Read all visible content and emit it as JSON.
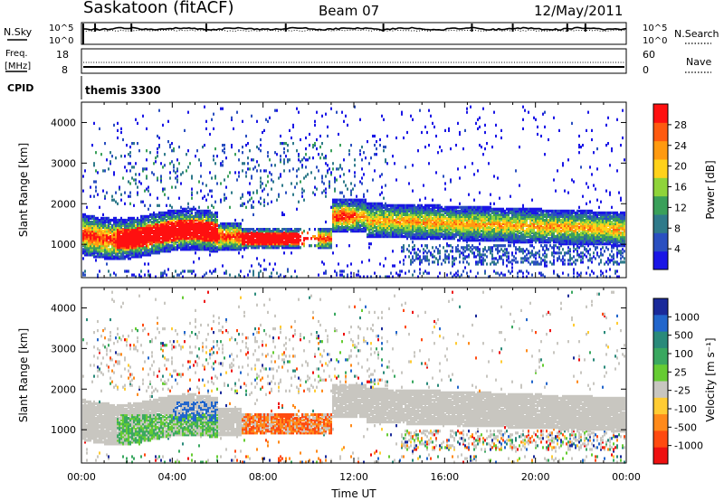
{
  "header": {
    "station": "Saskatoon (fitACF)",
    "beam": "Beam 07",
    "date": "12/May/2011"
  },
  "noise_panel": {
    "left_label": "N.Sky",
    "left_ticks": [
      "10^5",
      "10^0"
    ],
    "right_ticks": [
      "10^5",
      "10^0"
    ],
    "right_label": "N.Search"
  },
  "freq_panel": {
    "left_label_line1": "Freq.",
    "left_label_line2": "[MHz]",
    "left_ticks": [
      "18",
      "8"
    ],
    "right_ticks": [
      "60",
      "0"
    ],
    "right_label": "Nave"
  },
  "cpid": {
    "label": "CPID",
    "program": "themis 3300"
  },
  "time_axis": {
    "ticks": [
      "00:00",
      "04:00",
      "08:00",
      "12:00",
      "16:00",
      "20:00",
      "00:00"
    ],
    "label": "Time UT"
  },
  "chart_data": [
    {
      "type": "heatmap",
      "quantity": "Power",
      "ylabel": "Slant Range [km]",
      "ylim": [
        180,
        4500
      ],
      "yticks": [
        1000,
        2000,
        3000,
        4000
      ],
      "xlim_hours": [
        0,
        24
      ],
      "colorbar": {
        "label": "Power [dB]",
        "ticks": [
          "4",
          "8",
          "12",
          "16",
          "20",
          "24",
          "28"
        ],
        "colors": [
          "#1a16e6",
          "#2a4fc0",
          "#2f7a8a",
          "#3aa05a",
          "#8fd43a",
          "#ffd21a",
          "#ff9a10",
          "#ff5a10",
          "#ff1010"
        ]
      }
    },
    {
      "type": "heatmap",
      "quantity": "Velocity",
      "ylabel": "Slant Range [km]",
      "ylim": [
        180,
        4500
      ],
      "yticks": [
        1000,
        2000,
        3000,
        4000
      ],
      "xlim_hours": [
        0,
        24
      ],
      "colorbar": {
        "label": "Velocity [m s⁻¹]",
        "ticks": [
          "1000",
          "500",
          "100",
          "25",
          "-25",
          "-100",
          "-500",
          "-1000"
        ],
        "colors": [
          "#1a2a9a",
          "#2266cc",
          "#2a8a7a",
          "#3aa860",
          "#66cc33",
          "#c8c6c0",
          "#ffcc33",
          "#ff8a1a",
          "#ff4a10",
          "#ee1010"
        ]
      }
    }
  ]
}
